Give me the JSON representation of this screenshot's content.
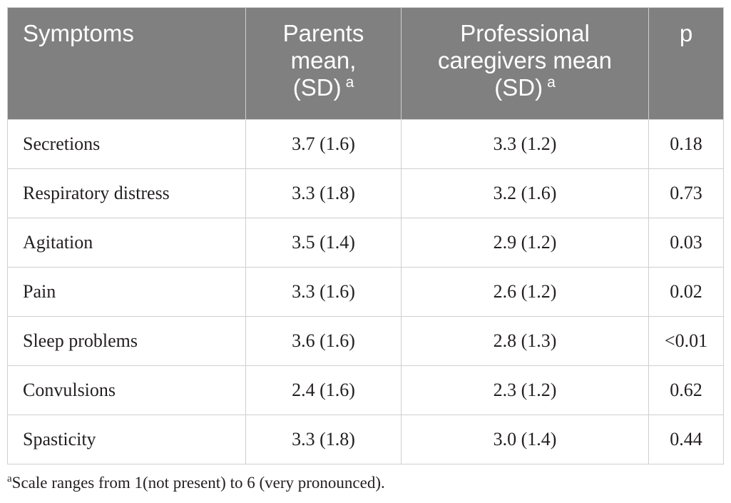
{
  "table": {
    "headers": {
      "symptoms": "Symptoms",
      "parents_line1": "Parents",
      "parents_line2": "mean,",
      "parents_line3": "(SD)",
      "parents_sup": "a",
      "prof_line1": "Professional",
      "prof_line2": "caregivers mean",
      "prof_line3": "(SD)",
      "prof_sup": "a",
      "p": "p"
    },
    "rows": [
      {
        "symptom": "Secretions",
        "parents": "3.7 (1.6)",
        "professional": "3.3 (1.2)",
        "p": "0.18"
      },
      {
        "symptom": "Respiratory distress",
        "parents": "3.3 (1.8)",
        "professional": "3.2 (1.6)",
        "p": "0.73"
      },
      {
        "symptom": "Agitation",
        "parents": "3.5 (1.4)",
        "professional": "2.9 (1.2)",
        "p": "0.03"
      },
      {
        "symptom": "Pain",
        "parents": "3.3 (1.6)",
        "professional": "2.6 (1.2)",
        "p": "0.02"
      },
      {
        "symptom": "Sleep problems",
        "parents": "3.6 (1.6)",
        "professional": "2.8 (1.3)",
        "p": "<0.01"
      },
      {
        "symptom": "Convulsions",
        "parents": "2.4 (1.6)",
        "professional": "2.3 (1.2)",
        "p": "0.62"
      },
      {
        "symptom": "Spasticity",
        "parents": "3.3 (1.8)",
        "professional": "3.0 (1.4)",
        "p": "0.44"
      }
    ]
  },
  "footnote": {
    "marker": "a",
    "text": "Scale ranges from 1(not present) to 6 (very pronounced)."
  }
}
